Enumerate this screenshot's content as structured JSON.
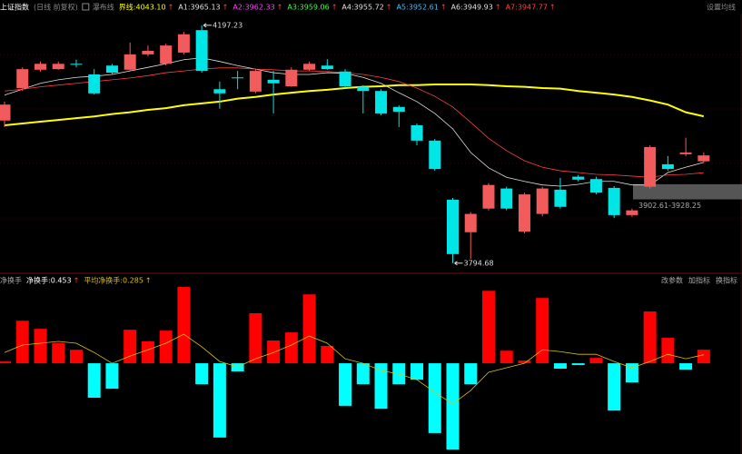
{
  "header": {
    "symbol": "上证指数",
    "period": "(日线 前复权)",
    "indicator": "瀑布线",
    "settings": "设置均线",
    "arrow": "↑"
  },
  "chart_data": [
    {
      "type": "candlestick",
      "open": [
        4036,
        4091,
        4122,
        4123,
        4132,
        4114,
        4129,
        4122,
        4148,
        4132,
        4151,
        4189,
        4089,
        4109,
        4085,
        4105,
        4094,
        4122,
        4129,
        4119,
        4093,
        4086,
        4059,
        4028,
        4002,
        3902,
        3847,
        3887,
        3921,
        3848,
        3878,
        3919,
        3941,
        3937,
        3922,
        3876,
        3924,
        3962,
        3979,
        3967
      ],
      "close": [
        4063,
        4123,
        4132,
        4132,
        4131,
        4082,
        4117,
        4148,
        4154,
        4163,
        4182,
        4120,
        4082,
        4109,
        4120,
        4099,
        4122,
        4132,
        4123,
        4094,
        4086,
        4048,
        4051,
        4002,
        3954,
        3810,
        3878,
        3927,
        3887,
        3911,
        3921,
        3890,
        3936,
        3914,
        3876,
        3884,
        3991,
        3954,
        3982,
        3977
      ],
      "high": [
        4068,
        4126,
        4136,
        4136,
        4139,
        4123,
        4132,
        4168,
        4163,
        4166,
        4186,
        4197.23,
        4102,
        4120,
        4123,
        4120,
        4126,
        4136,
        4140,
        4123,
        4096,
        4089,
        4062,
        4031,
        4005,
        3905,
        3881,
        3930,
        3924,
        3914,
        3924,
        3939,
        3944,
        3941,
        3925,
        3887,
        3994,
        3976,
        4007,
        3982
      ],
      "low": [
        4025,
        4086,
        4119,
        4122,
        4126,
        4080,
        4114,
        4120,
        4145,
        4129,
        4148,
        4117,
        4056,
        4089,
        4082,
        4048,
        4093,
        4120,
        4122,
        4091,
        4048,
        4045,
        4025,
        3994,
        3951,
        3794.68,
        3802,
        3884,
        3884,
        3845,
        3874,
        3887,
        3933,
        3911,
        3871,
        3873,
        3921,
        3951,
        3976,
        3964
      ],
      "up_color": "#f25b5b",
      "down_color": "#00e5e5",
      "ylim": [
        3779,
        4240
      ],
      "legend": [
        {
          "label": "界线:4043.10",
          "color": "#ffff00",
          "values": [
            4028,
            4031,
            4034,
            4037,
            4040,
            4043,
            4047,
            4050,
            4054,
            4057,
            4062,
            4065,
            4068,
            4073,
            4076,
            4080,
            4083,
            4086,
            4088,
            4091,
            4093,
            4094,
            4096,
            4096,
            4097,
            4097,
            4097,
            4096,
            4094,
            4093,
            4091,
            4090,
            4086,
            4083,
            4080,
            4076,
            4070,
            4063,
            4050,
            4043.1
          ]
        },
        {
          "label": "A1:3965.13",
          "color": "#e0e0e0",
          "values": [
            4079,
            4089,
            4099,
            4105,
            4109,
            4111,
            4114,
            4120,
            4126,
            4132,
            4139,
            4142,
            4136,
            4129,
            4123,
            4117,
            4114,
            4114,
            4117,
            4116,
            4109,
            4099,
            4083,
            4068,
            4048,
            4022,
            3982,
            3956,
            3940,
            3933,
            3927,
            3925,
            3928,
            3933,
            3933,
            3927,
            3927,
            3948,
            3957,
            3965.13
          ]
        },
        {
          "label": "A2:3962.33",
          "color": "#ff40ff"
        },
        {
          "label": "A3:3959.06",
          "color": "#40ff40"
        },
        {
          "label": "A4:3955.72",
          "color": "#e0e0e0"
        },
        {
          "label": "A5:3952.61",
          "color": "#40c0ff"
        },
        {
          "label": "A6:3949.93",
          "color": "#e0e0e0"
        },
        {
          "label": "A7:3947.77",
          "color": "#ff4040",
          "values": [
            4086,
            4089,
            4093,
            4096,
            4099,
            4102,
            4105,
            4108,
            4112,
            4117,
            4120,
            4123,
            4125,
            4125,
            4123,
            4122,
            4120,
            4120,
            4119,
            4117,
            4114,
            4109,
            4102,
            4091,
            4077,
            4059,
            4033,
            4006,
            3985,
            3968,
            3957,
            3951,
            3948,
            3945,
            3944,
            3942,
            3940,
            3944,
            3945,
            3947.77
          ]
        }
      ],
      "high_label": "4197.23",
      "low_label": "3794.68",
      "zone": {
        "range": [
          3902.61,
          3928.25
        ],
        "label": "3902.61-3928.25"
      }
    },
    {
      "type": "bar",
      "title": "净换手",
      "value_label": "净换手:0.453",
      "values": [
        0.06,
        1.42,
        1.15,
        0.67,
        0.45,
        -1.15,
        -0.85,
        1.12,
        0.73,
        1.09,
        2.55,
        -0.7,
        -2.48,
        -0.27,
        1.67,
        0.76,
        1.03,
        2.3,
        0.58,
        -1.42,
        -0.7,
        -1.52,
        -0.7,
        -0.55,
        -2.33,
        -2.88,
        -0.7,
        2.42,
        0.42,
        0.09,
        2.18,
        -0.18,
        -0.06,
        0.18,
        -1.58,
        -0.64,
        1.73,
        0.85,
        -0.21,
        0.453
      ],
      "up_color": "#ff0000",
      "down_color": "#00ffff",
      "average": {
        "label": "平均净换手:0.285",
        "color": "#e0c000",
        "values": [
          0.36,
          0.61,
          0.67,
          0.73,
          0.67,
          0.36,
          0,
          0.24,
          0.45,
          0.67,
          0.97,
          0.55,
          0.06,
          -0.12,
          0.15,
          0.36,
          0.61,
          0.91,
          0.67,
          0.15,
          0,
          -0.24,
          -0.36,
          -0.55,
          -0.97,
          -1.36,
          -0.91,
          -0.3,
          -0.15,
          0,
          0.45,
          0.39,
          0.3,
          0.3,
          0.06,
          -0.15,
          0.06,
          0.3,
          0.15,
          0.285
        ]
      },
      "ylim": [
        -3.03,
        2.58
      ],
      "buttons": [
        "改参数",
        "加指标",
        "换指标"
      ]
    }
  ]
}
